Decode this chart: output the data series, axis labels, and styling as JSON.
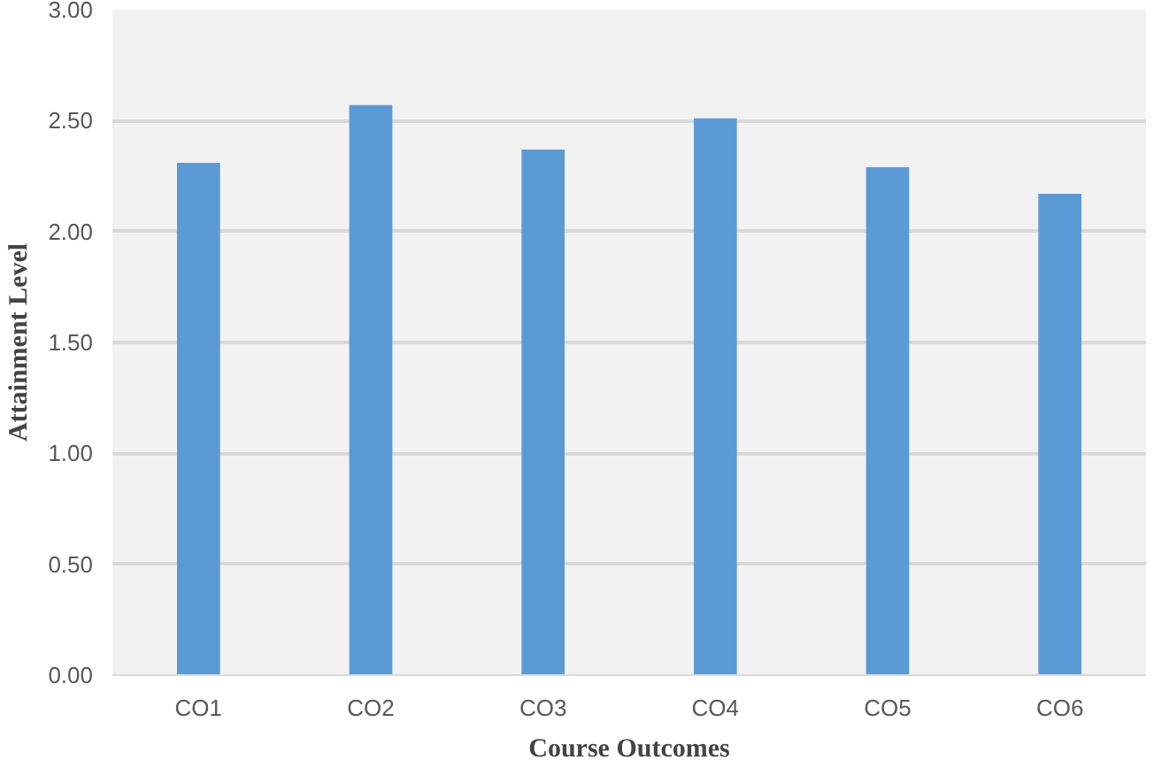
{
  "chart_data": {
    "type": "bar",
    "xlabel": "Course Outcomes",
    "ylabel": "Attainment Level",
    "categories": [
      "CO1",
      "CO2",
      "CO3",
      "CO4",
      "CO5",
      "CO6"
    ],
    "values": [
      2.31,
      2.57,
      2.37,
      2.51,
      2.29,
      2.17
    ],
    "color": "#5b9bd5",
    "ylim": [
      0,
      3
    ],
    "yticks": [
      {
        "value": 0,
        "label": "0.00"
      },
      {
        "value": 0.5,
        "label": "0.50"
      },
      {
        "value": 1,
        "label": "1.00"
      },
      {
        "value": 1.5,
        "label": "1.50"
      },
      {
        "value": 2,
        "label": "2.00"
      },
      {
        "value": 2.5,
        "label": "2.50"
      },
      {
        "value": 3,
        "label": "3.00"
      }
    ],
    "grid": "y"
  }
}
